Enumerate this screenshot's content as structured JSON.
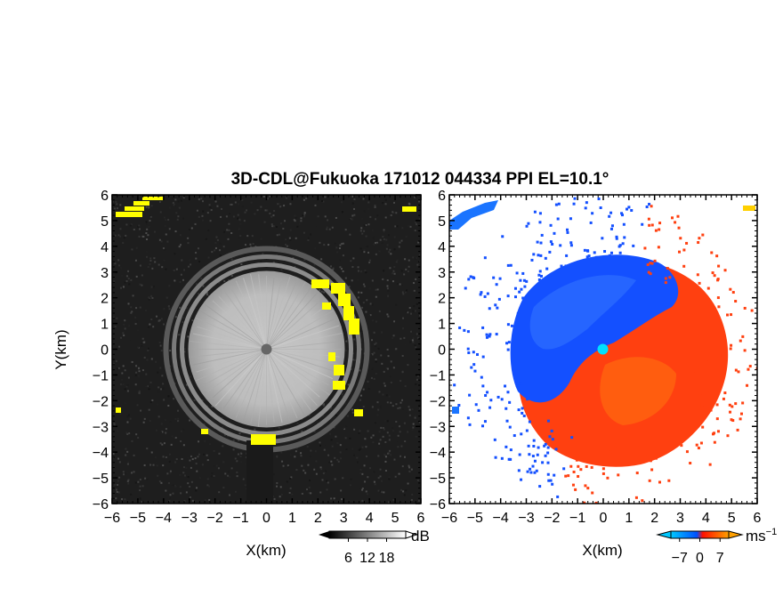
{
  "figure": {
    "title": "3D-CDL@Fukuoka 171012 044334 PPI EL=10.1°"
  },
  "chart_data": [
    {
      "type": "heatmap",
      "panel": "left",
      "description": "PPI SNR scan (grayscale) with yellow clutter flags",
      "xlabel": "X(km)",
      "ylabel": "Y(km)",
      "xlim": [
        -6,
        6
      ],
      "ylim": [
        -6,
        6
      ],
      "xticks": [
        "−6",
        "−5",
        "−4",
        "−3",
        "−2",
        "−1",
        "0",
        "1",
        "2",
        "3",
        "4",
        "5",
        "6"
      ],
      "yticks": [
        "6",
        "5",
        "4",
        "3",
        "2",
        "1",
        "0",
        "−1",
        "−2",
        "−3",
        "−4",
        "−5",
        "−6"
      ],
      "colorbar": {
        "unit": "dB",
        "ticks": [
          "6",
          "12",
          "18"
        ],
        "range": [
          0,
          24
        ]
      },
      "colormap": "gray",
      "flag_color": "#ffff00",
      "echo_radius_km": 3.0,
      "rings_km": [
        3.3,
        3.6,
        3.9
      ],
      "blocked_sector": {
        "from_x": -0.8,
        "to_x": 0.3,
        "below_y": -3.5
      }
    },
    {
      "type": "heatmap",
      "panel": "right",
      "description": "PPI Doppler velocity",
      "xlabel": "X(km)",
      "ylabel": "",
      "xlim": [
        -6,
        6
      ],
      "ylim": [
        -6,
        6
      ],
      "xticks": [
        "−6",
        "−5",
        "−4",
        "−3",
        "−2",
        "−1",
        "0",
        "1",
        "2",
        "3",
        "4",
        "5",
        "6"
      ],
      "yticks": [
        "6",
        "5",
        "4",
        "3",
        "2",
        "1",
        "0",
        "−1",
        "−2",
        "−3",
        "−4",
        "−5",
        "−6"
      ],
      "colorbar": {
        "unit": "ms",
        "unit_exp": "−1",
        "ticks": [
          "−7",
          "0",
          "7"
        ],
        "range": [
          -10,
          10
        ]
      },
      "colormap": [
        "#00c8ff",
        "#0050ff",
        "#ff0000",
        "#ff9000"
      ],
      "approach_color": "#1450ff",
      "recede_color": "#ff4010",
      "center_marker_color": "#00e0ff"
    }
  ]
}
